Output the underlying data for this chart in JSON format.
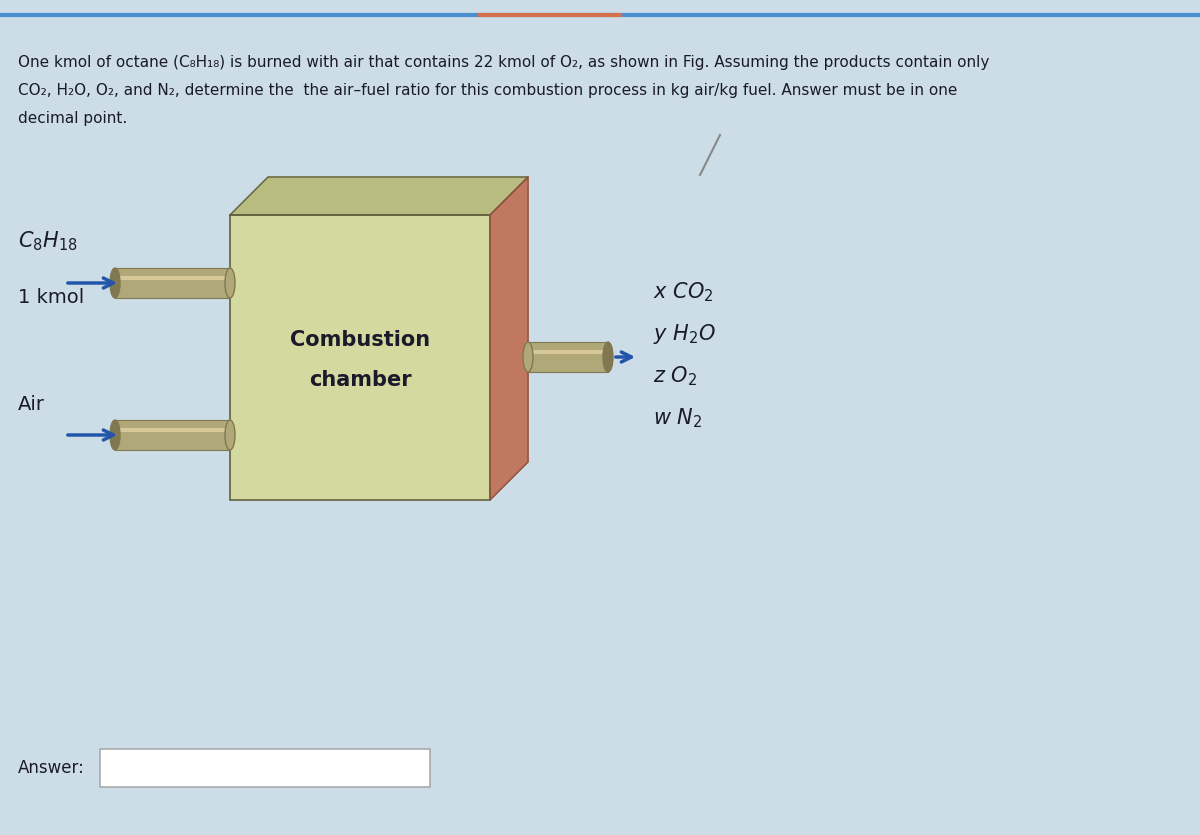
{
  "bg_color": "#ccdde8",
  "bg_top_line_color": "#4a90d0",
  "bg_top_orange": "#d4714a",
  "question_line1": "One kmol of octane (C₈H₁₈) is burned with air that contains 22 kmol of O₂, as shown in Fig. Assuming the products contain only",
  "question_line2": "CO₂, H₂O, O₂, and N₂, determine the  the air–fuel ratio for this combustion process in kg air/kg fuel. Answer must be in one",
  "question_line3": "decimal point.",
  "fuel_label": "C_8H_{18}",
  "fuel_amount": "1 kmol",
  "air_label": "Air",
  "chamber_line1": "Combustion",
  "chamber_line2": "chamber",
  "products": [
    "$x$ CO$_2$",
    "$y$ H$_2$O",
    "$z$ O$_2$",
    "$w$ N$_2$"
  ],
  "answer_label": "Answer:",
  "box_face_color": "#d4d9a0",
  "box_top_color": "#b8bc80",
  "box_right_color": "#c07860",
  "pipe_color": "#b0a878",
  "pipe_dark_color": "#807850",
  "pipe_light_color": "#d8c898",
  "arrow_color": "#2255aa",
  "text_color": "#1a1a2a",
  "answer_box_color": "#ffffff",
  "answer_box_border": "#aaaaaa",
  "diag_line_color": "#888888"
}
